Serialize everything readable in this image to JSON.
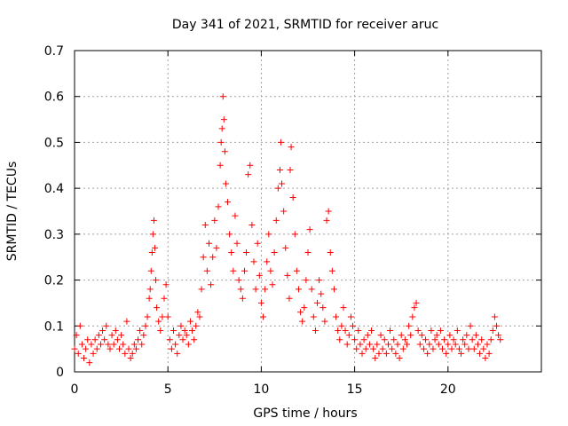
{
  "chart_data": {
    "type": "scatter",
    "title": "Day 341 of 2021, SRMTID for receiver aruc",
    "xlabel": "GPS time / hours",
    "ylabel": "SRMTID / TECUs",
    "xlim": [
      0,
      25
    ],
    "ylim": [
      0,
      0.7
    ],
    "xticks": [
      0,
      5,
      10,
      15,
      20
    ],
    "xtick_labels": [
      "0",
      "5",
      "10",
      "15",
      "20"
    ],
    "yticks": [
      0,
      0.1,
      0.2,
      0.3,
      0.4,
      0.5,
      0.6,
      0.7
    ],
    "ytick_labels": [
      "0",
      "0.1",
      "0.2",
      "0.3",
      "0.4",
      "0.5",
      "0.6",
      "0.7"
    ],
    "grid": true,
    "marker": "+",
    "series": [
      {
        "name": "SRMTID",
        "color": "#ff0000",
        "x": [
          0.0,
          0.1,
          0.2,
          0.3,
          0.4,
          0.5,
          0.6,
          0.7,
          0.8,
          0.9,
          1.0,
          1.1,
          1.2,
          1.3,
          1.4,
          1.5,
          1.6,
          1.7,
          1.8,
          1.9,
          2.0,
          2.1,
          2.2,
          2.3,
          2.4,
          2.5,
          2.6,
          2.7,
          2.8,
          2.9,
          3.0,
          3.1,
          3.2,
          3.3,
          3.4,
          3.5,
          3.6,
          3.7,
          3.8,
          3.9,
          4.0,
          4.05,
          4.1,
          4.15,
          4.2,
          4.25,
          4.3,
          4.35,
          4.4,
          4.5,
          4.6,
          4.7,
          4.8,
          4.9,
          5.0,
          5.1,
          5.2,
          5.3,
          5.4,
          5.5,
          5.6,
          5.7,
          5.8,
          5.9,
          6.0,
          6.1,
          6.2,
          6.3,
          6.4,
          6.5,
          6.6,
          6.7,
          6.8,
          6.9,
          7.0,
          7.1,
          7.2,
          7.3,
          7.4,
          7.5,
          7.6,
          7.7,
          7.8,
          7.85,
          7.9,
          7.95,
          8.0,
          8.05,
          8.1,
          8.2,
          8.3,
          8.4,
          8.5,
          8.6,
          8.7,
          8.8,
          8.9,
          9.0,
          9.1,
          9.2,
          9.3,
          9.4,
          9.5,
          9.6,
          9.7,
          9.8,
          9.9,
          10.0,
          10.1,
          10.2,
          10.3,
          10.4,
          10.5,
          10.6,
          10.7,
          10.8,
          10.9,
          11.0,
          11.05,
          11.1,
          11.2,
          11.3,
          11.4,
          11.5,
          11.55,
          11.6,
          11.7,
          11.8,
          11.9,
          12.0,
          12.1,
          12.2,
          12.3,
          12.4,
          12.5,
          12.6,
          12.7,
          12.8,
          12.9,
          13.0,
          13.1,
          13.2,
          13.3,
          13.4,
          13.5,
          13.6,
          13.7,
          13.8,
          13.9,
          14.0,
          14.1,
          14.2,
          14.3,
          14.4,
          14.5,
          14.6,
          14.7,
          14.8,
          14.9,
          15.0,
          15.1,
          15.2,
          15.3,
          15.4,
          15.5,
          15.6,
          15.7,
          15.8,
          15.9,
          16.0,
          16.1,
          16.2,
          16.3,
          16.4,
          16.5,
          16.6,
          16.7,
          16.8,
          16.9,
          17.0,
          17.1,
          17.2,
          17.3,
          17.4,
          17.5,
          17.6,
          17.7,
          17.8,
          17.9,
          18.0,
          18.1,
          18.2,
          18.3,
          18.4,
          18.5,
          18.6,
          18.7,
          18.8,
          18.9,
          19.0,
          19.1,
          19.2,
          19.3,
          19.4,
          19.5,
          19.6,
          19.7,
          19.8,
          19.9,
          20.0,
          20.1,
          20.2,
          20.3,
          20.4,
          20.5,
          20.6,
          20.7,
          20.8,
          20.9,
          21.0,
          21.1,
          21.2,
          21.3,
          21.4,
          21.5,
          21.6,
          21.7,
          21.8,
          21.9,
          22.0,
          22.1,
          22.2,
          22.3,
          22.4,
          22.5,
          22.6,
          22.7,
          22.8
        ],
        "y": [
          0.05,
          0.08,
          0.04,
          0.1,
          0.06,
          0.03,
          0.05,
          0.07,
          0.02,
          0.06,
          0.04,
          0.07,
          0.05,
          0.08,
          0.06,
          0.09,
          0.07,
          0.1,
          0.06,
          0.05,
          0.08,
          0.06,
          0.09,
          0.07,
          0.05,
          0.08,
          0.06,
          0.04,
          0.11,
          0.05,
          0.03,
          0.04,
          0.06,
          0.05,
          0.07,
          0.09,
          0.06,
          0.08,
          0.1,
          0.12,
          0.16,
          0.18,
          0.22,
          0.26,
          0.3,
          0.33,
          0.27,
          0.2,
          0.14,
          0.11,
          0.09,
          0.12,
          0.16,
          0.19,
          0.12,
          0.07,
          0.05,
          0.09,
          0.06,
          0.04,
          0.08,
          0.1,
          0.07,
          0.09,
          0.08,
          0.06,
          0.11,
          0.09,
          0.07,
          0.1,
          0.13,
          0.12,
          0.18,
          0.25,
          0.32,
          0.22,
          0.28,
          0.19,
          0.25,
          0.33,
          0.27,
          0.36,
          0.45,
          0.5,
          0.53,
          0.6,
          0.55,
          0.48,
          0.41,
          0.37,
          0.3,
          0.26,
          0.22,
          0.34,
          0.28,
          0.2,
          0.18,
          0.16,
          0.22,
          0.26,
          0.43,
          0.45,
          0.32,
          0.24,
          0.18,
          0.28,
          0.21,
          0.15,
          0.12,
          0.18,
          0.24,
          0.3,
          0.22,
          0.19,
          0.26,
          0.33,
          0.4,
          0.44,
          0.5,
          0.41,
          0.35,
          0.27,
          0.21,
          0.16,
          0.44,
          0.49,
          0.38,
          0.3,
          0.22,
          0.18,
          0.13,
          0.11,
          0.14,
          0.2,
          0.26,
          0.31,
          0.18,
          0.12,
          0.09,
          0.15,
          0.2,
          0.17,
          0.14,
          0.11,
          0.33,
          0.35,
          0.26,
          0.22,
          0.18,
          0.12,
          0.09,
          0.07,
          0.1,
          0.14,
          0.09,
          0.06,
          0.08,
          0.12,
          0.1,
          0.07,
          0.05,
          0.09,
          0.06,
          0.04,
          0.07,
          0.05,
          0.08,
          0.06,
          0.09,
          0.05,
          0.03,
          0.06,
          0.04,
          0.08,
          0.05,
          0.07,
          0.04,
          0.06,
          0.09,
          0.05,
          0.07,
          0.04,
          0.06,
          0.03,
          0.08,
          0.05,
          0.07,
          0.06,
          0.1,
          0.08,
          0.12,
          0.14,
          0.15,
          0.09,
          0.06,
          0.08,
          0.05,
          0.07,
          0.04,
          0.06,
          0.09,
          0.05,
          0.07,
          0.08,
          0.06,
          0.09,
          0.05,
          0.07,
          0.04,
          0.06,
          0.08,
          0.05,
          0.07,
          0.06,
          0.09,
          0.05,
          0.04,
          0.07,
          0.06,
          0.08,
          0.05,
          0.1,
          0.07,
          0.05,
          0.08,
          0.06,
          0.04,
          0.07,
          0.05,
          0.03,
          0.06,
          0.04,
          0.07,
          0.09,
          0.12,
          0.1,
          0.08,
          0.07
        ]
      }
    ]
  }
}
